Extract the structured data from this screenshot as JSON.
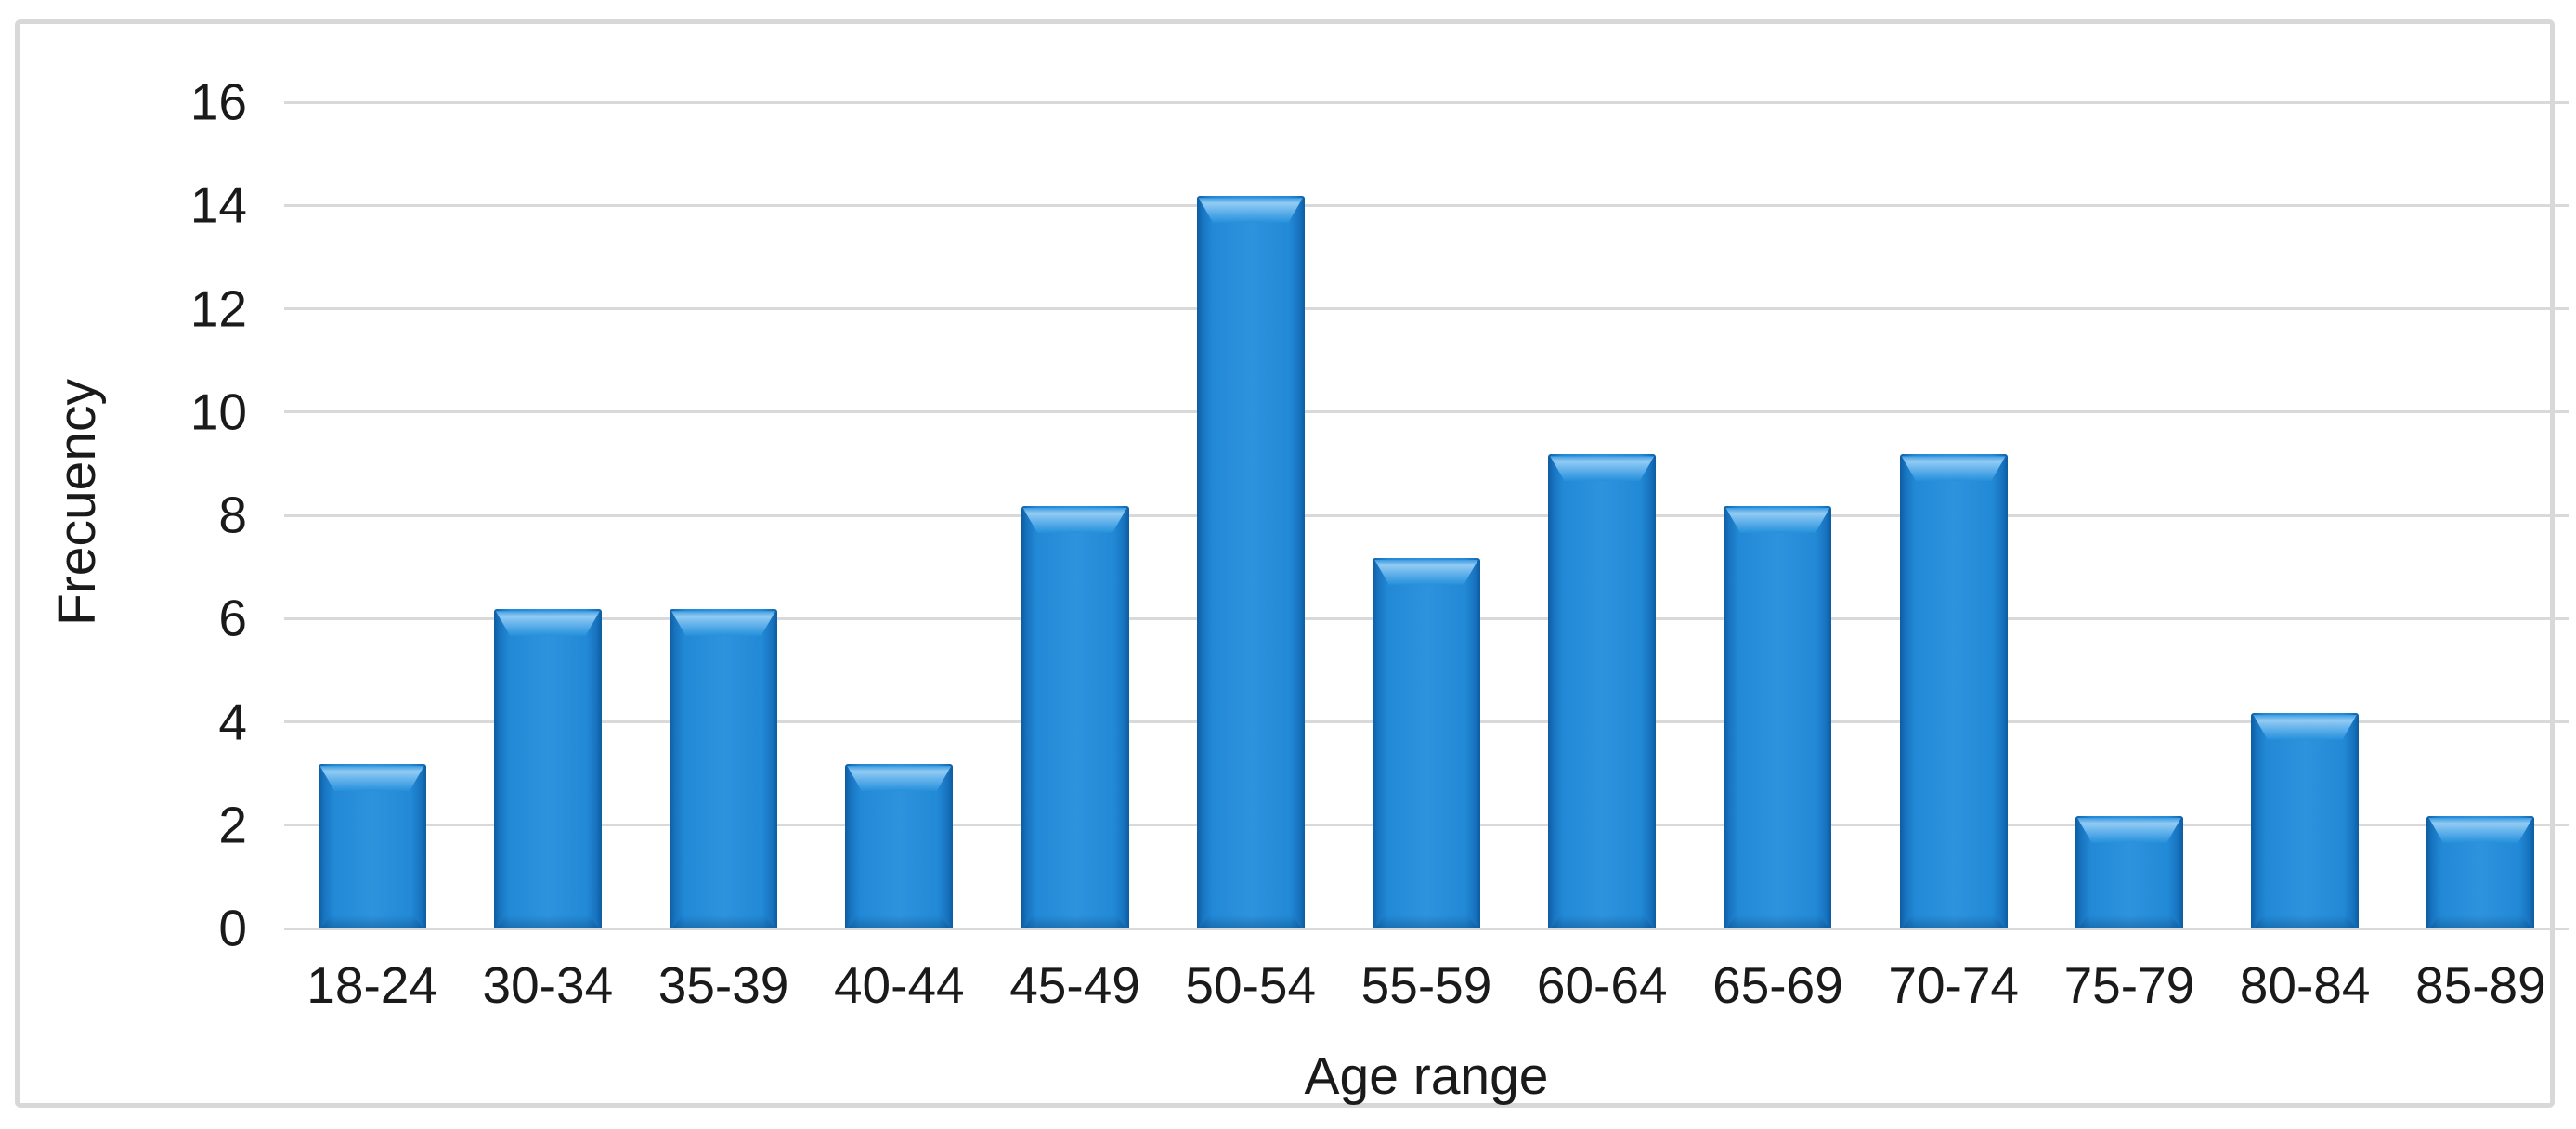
{
  "chart_data": {
    "type": "bar",
    "title": "",
    "categories": [
      "18-24",
      "30-34",
      "35-39",
      "40-44",
      "45-49",
      "50-54",
      "55-59",
      "60-64",
      "65-69",
      "70-74",
      "75-79",
      "80-84",
      "85-89"
    ],
    "values": [
      3,
      6,
      6,
      3,
      8,
      14,
      7,
      9,
      8,
      9,
      2,
      4,
      2
    ],
    "xlabel": "Age range",
    "ylabel": "Frecuency",
    "ylim": [
      0,
      16
    ],
    "yticks": [
      0,
      2,
      4,
      6,
      8,
      10,
      12,
      14,
      16
    ],
    "grid": "horizontal-only",
    "legend": "none",
    "colors": {
      "bar_face": "#2189D6",
      "bar_edge": "#0C5CA0",
      "bar_highlight": "#93CCF4",
      "gridline": "#D9D9D9",
      "frame_border": "#D8D8D8",
      "text": "#1A1A1A",
      "background": "#FFFFFF"
    }
  }
}
